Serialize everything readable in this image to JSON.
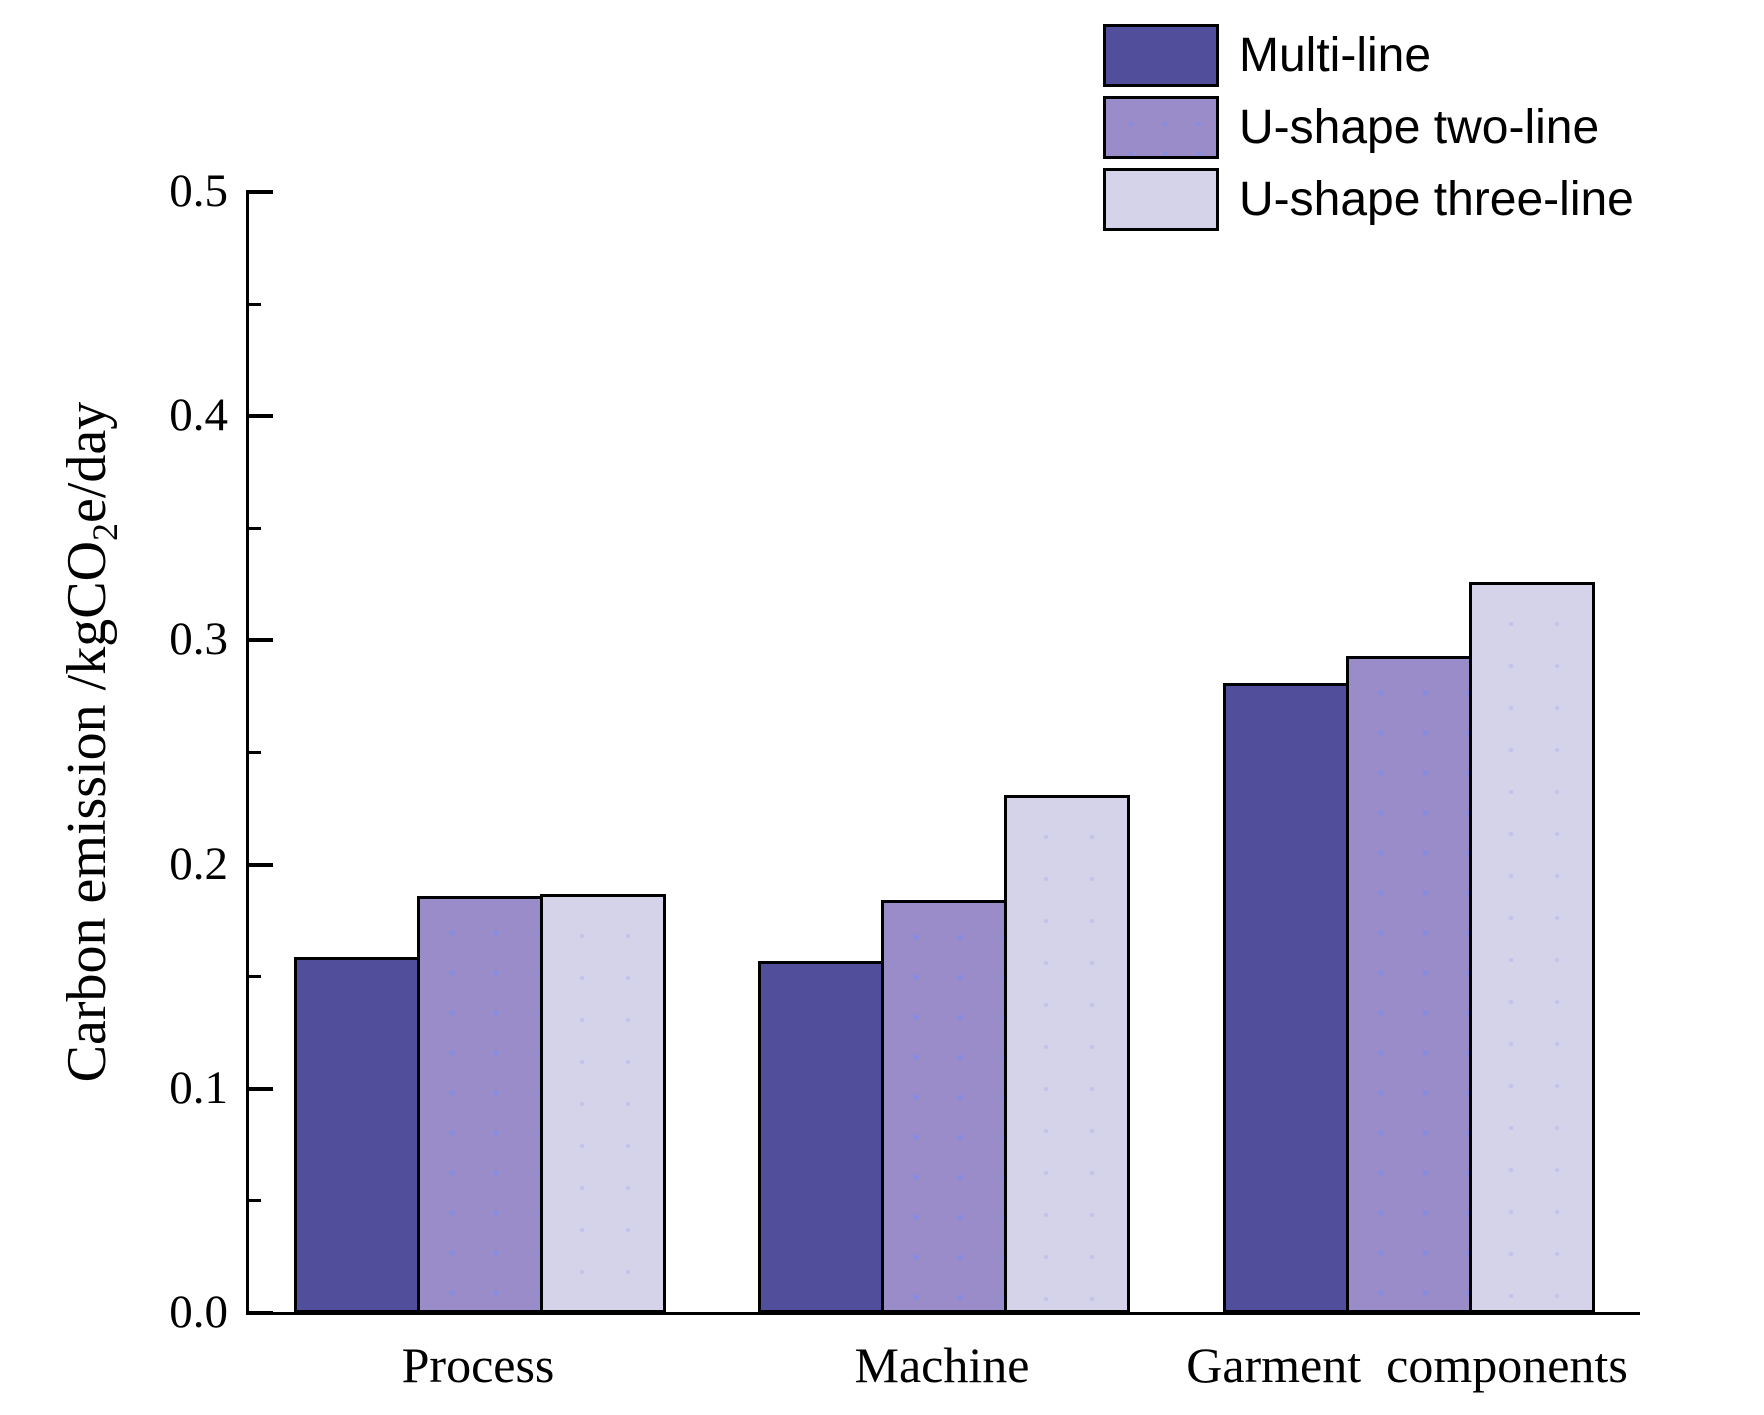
{
  "chart_data": {
    "type": "bar",
    "title": "",
    "xlabel": "",
    "ylabel": "Carbon emission /kgCO2e/day",
    "ylabel_parts": {
      "prefix": "Carbon emission /kgCO",
      "sub": "2",
      "suffix": "e/day"
    },
    "categories": [
      "Process",
      "Machine",
      "Garment  components"
    ],
    "series": [
      {
        "name": "Multi-line",
        "color": "#514e9b",
        "values": [
          0.159,
          0.157,
          0.281
        ]
      },
      {
        "name": "U-shape two-line",
        "color": "#9a8cc8",
        "values": [
          0.186,
          0.184,
          0.293
        ]
      },
      {
        "name": "U-shape three-line",
        "color": "#d5d3ea",
        "values": [
          0.187,
          0.231,
          0.326
        ]
      }
    ],
    "ylim": [
      0,
      0.5
    ],
    "yticks": [
      0.0,
      0.1,
      0.2,
      0.3,
      0.4,
      0.5
    ],
    "ytick_labels": [
      "0.0",
      "0.1",
      "0.2",
      "0.3",
      "0.4",
      "0.5"
    ],
    "minor_yticks": [
      0.05,
      0.15,
      0.25,
      0.35,
      0.45
    ],
    "grid": false,
    "legend_position": "top-right",
    "bar_outline_color": "#000000",
    "axis_color": "#000000",
    "background_color": "#ffffff"
  }
}
